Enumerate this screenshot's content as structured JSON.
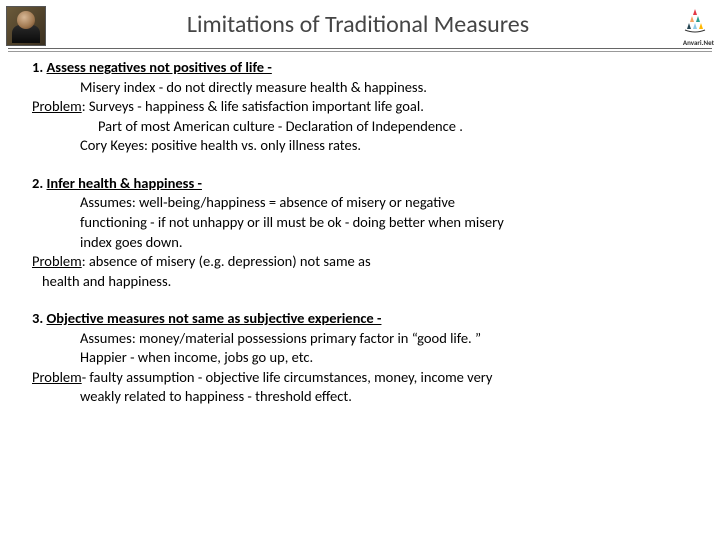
{
  "header": {
    "title": "Limitations of Traditional Measures",
    "brand": "Anvari.Net"
  },
  "logo": {
    "colors": [
      "#e63946",
      "#f4a261",
      "#2a9d8f",
      "#264653",
      "#8ecae6",
      "#ffb703"
    ]
  },
  "sections": [
    {
      "lead_num": "1. ",
      "lead": "Assess negatives not positives of life -",
      "body": [
        {
          "cls": "indent1",
          "text": "Misery index - do not directly measure health  & happiness."
        }
      ],
      "problem_label": "Problem",
      "problem_sep": ": ",
      "problem_text": "Surveys - happiness & life satisfaction important life goal.",
      "tail": [
        {
          "cls": "indent2",
          "text": "Part of most American culture - Declaration of Independence ."
        },
        {
          "cls": "indent1",
          "text": "Cory Keyes: positive health vs. only illness rates."
        }
      ]
    },
    {
      "lead_num": "2. ",
      "lead": "Infer health & happiness -",
      "body": [
        {
          "cls": "indent1",
          "text": "Assumes: well-being/happiness = absence of misery or negative"
        },
        {
          "cls": "indent1",
          "text": "functioning - if not unhappy or ill must be ok - doing better when misery"
        },
        {
          "cls": "indent1",
          "text": "index goes down."
        }
      ],
      "problem_label": "Problem",
      "problem_sep": ": ",
      "problem_text": "absence of misery (e.g. depression) not same as",
      "tail": [
        {
          "cls": "indent-sm",
          "text": "health and happiness."
        }
      ]
    },
    {
      "lead_num": "3. ",
      "lead": "Objective measures not same as subjective experience -",
      "body": [
        {
          "cls": "indent1",
          "text": "Assumes:  money/material possessions primary factor in “good life. ”"
        },
        {
          "cls": "indent1",
          "text": "Happier - when income, jobs go up, etc."
        }
      ],
      "problem_label": "Problem",
      "problem_sep": "- ",
      "problem_text": "faulty assumption - objective life circumstances, money, income very",
      "tail": [
        {
          "cls": "indent1",
          "text": "weakly related to happiness - threshold effect."
        }
      ]
    }
  ]
}
